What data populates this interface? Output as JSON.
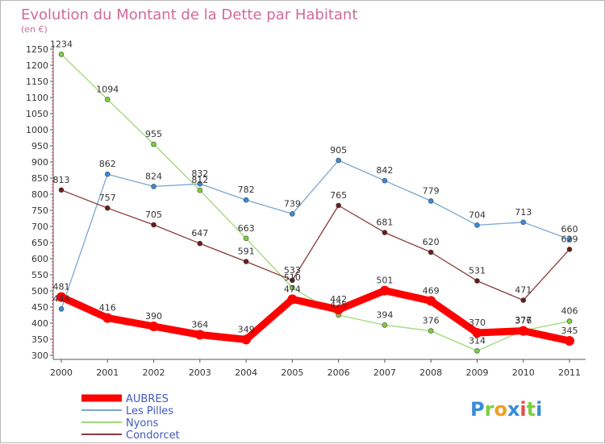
{
  "chart_data": {
    "type": "line",
    "title": "Evolution du Montant de la Dette par Habitant",
    "subtitle": "(en €)",
    "categories": [
      "2000",
      "2001",
      "2002",
      "2003",
      "2004",
      "2005",
      "2006",
      "2007",
      "2008",
      "2009",
      "2010",
      "2011"
    ],
    "ylim": [
      300,
      1250
    ],
    "yticks": [
      300,
      350,
      400,
      450,
      500,
      550,
      600,
      650,
      700,
      750,
      800,
      850,
      900,
      950,
      1000,
      1050,
      1100,
      1150,
      1200,
      1250
    ],
    "grid": false,
    "legend_position": "bottom-left",
    "series": [
      {
        "name": "AUBRES",
        "color": "#ff0000",
        "point_color": "#ff0000",
        "values": [
          481,
          416,
          390,
          364,
          349,
          474,
          442,
          501,
          469,
          370,
          376,
          345
        ],
        "labels": [
          "481",
          "416",
          "390",
          "364",
          "349",
          "474",
          "442",
          "501",
          "469",
          "370",
          "376",
          "345"
        ]
      },
      {
        "name": "Les Pilles",
        "color": "#7aa6cf",
        "point_color": "#3a8ad8",
        "values": [
          444,
          862,
          824,
          832,
          782,
          739,
          905,
          842,
          779,
          704,
          713,
          660
        ],
        "labels": [
          "444",
          "862",
          "824",
          "832",
          "782",
          "739",
          "905",
          "842",
          "779",
          "704",
          "713",
          "660"
        ]
      },
      {
        "name": "Nyons",
        "color": "#9ed87a",
        "point_color": "#7bd03a",
        "values": [
          1234,
          1094,
          955,
          812,
          663,
          510,
          425,
          394,
          376,
          314,
          377,
          406
        ],
        "labels": [
          "1234",
          "1094",
          "955",
          "812",
          "663",
          "510",
          "425",
          "394",
          "376",
          "314",
          "377",
          "406"
        ]
      },
      {
        "name": "Condorcet",
        "color": "#8a3a3a",
        "point_color": "#6a1a1a",
        "values": [
          813,
          757,
          705,
          647,
          591,
          533,
          765,
          681,
          620,
          531,
          471,
          629
        ],
        "labels": [
          "813",
          "757",
          "705",
          "647",
          "591",
          "533",
          "765",
          "681",
          "620",
          "531",
          "471",
          "629"
        ]
      }
    ]
  },
  "logo": {
    "letters": [
      "P",
      "r",
      "o",
      "x",
      "i",
      "t",
      "i"
    ],
    "colors": [
      "#3a8ad8",
      "#7bd03a",
      "#f0a020",
      "#3a8ad8",
      "#e05050",
      "#7bd03a",
      "#3a8ad8"
    ]
  }
}
